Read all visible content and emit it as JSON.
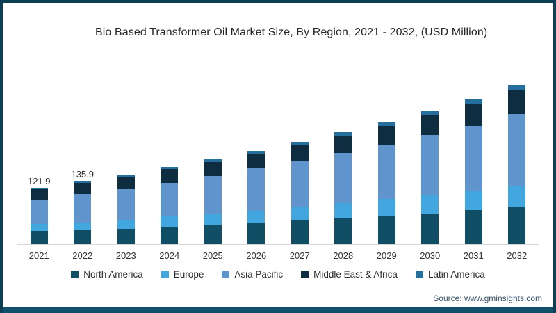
{
  "frame": {
    "border_color": "#0d3e53",
    "bottom_bar_color": "#10506b"
  },
  "header": {
    "title": "Bio Based Transformer Oil Market Size, By Region, 2021 - 2032, (USD Million)"
  },
  "chart_data": {
    "type": "bar",
    "stacked": true,
    "title": "Bio Based Transformer Oil Market Size, By Region, 2021 - 2032, (USD Million)",
    "unit": "USD Million",
    "xlabel": "",
    "ylabel": "",
    "ylim": [
      0,
      360
    ],
    "grid": false,
    "legend_position": "bottom",
    "categories": [
      "2021",
      "2022",
      "2023",
      "2024",
      "2025",
      "2026",
      "2027",
      "2028",
      "2029",
      "2030",
      "2031",
      "2032"
    ],
    "series": [
      {
        "name": "North America",
        "color": "#104e66",
        "values": [
          28.8,
          30.3,
          33.2,
          37.1,
          41.1,
          46.0,
          50.9,
          54.9,
          60.9,
          66.3,
          73.8,
          79.4
        ]
      },
      {
        "name": "Europe",
        "color": "#41a7de",
        "values": [
          14.8,
          16.8,
          18.7,
          22.3,
          23.7,
          26.3,
          29.0,
          33.0,
          36.0,
          38.5,
          41.5,
          45.5
        ]
      },
      {
        "name": "Asia Pacific",
        "color": "#5f94cd",
        "values": [
          53.0,
          60.3,
          66.7,
          72.8,
          81.8,
          90.8,
          98.4,
          108.3,
          118.2,
          131.2,
          140.4,
          155.7
        ]
      },
      {
        "name": "Middle East & Africa",
        "color": "#0e2d40",
        "values": [
          22.3,
          24.6,
          26.5,
          29.5,
          31.0,
          32.5,
          35.6,
          38.6,
          40.1,
          43.0,
          47.9,
          50.9
        ]
      },
      {
        "name": "Latin America",
        "color": "#256f9e",
        "values": [
          3.0,
          3.9,
          4.7,
          5.2,
          5.8,
          6.1,
          6.5,
          7.0,
          7.1,
          7.5,
          8.0,
          11.9
        ]
      }
    ],
    "totals": [
      121.9,
      135.9,
      149.8,
      166.9,
      183.4,
      201.7,
      220.4,
      241.8,
      262.3,
      286.5,
      311.6,
      343.4
    ],
    "bar_labels": [
      "121.9",
      "135.9",
      "",
      "",
      "",
      "",
      "",
      "",
      "",
      "",
      "",
      ""
    ]
  },
  "footer": {
    "source_label": "Source: www.gminsights.com"
  }
}
